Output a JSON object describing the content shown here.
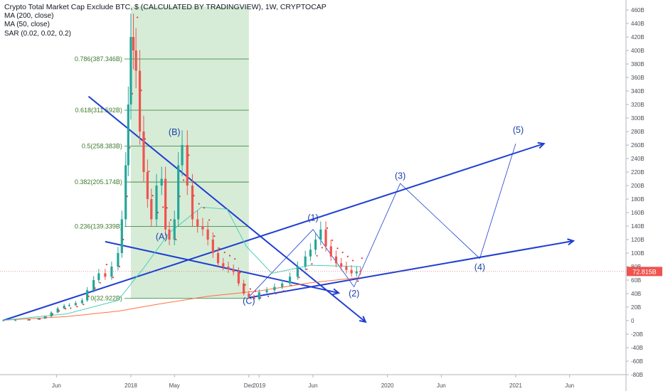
{
  "legend": {
    "title": "Crypto Total Market Cap Exclude BTC, $ (CALCULATED BY TRADINGVIEW), 1W, CRYPTOCAP",
    "indicators": [
      "MA (200, close)",
      "MA (50, close)",
      "SAR (0.02, 0.02, 0.2)"
    ]
  },
  "price_label": "72.815B",
  "colors": {
    "up": "#26a69a",
    "down": "#ef5350",
    "trendline": "#1f3fd1",
    "fib": "#2e7d32",
    "fib_zone": "#c8e6c9",
    "ma50": "#4dd0b5",
    "ma200": "#ff7043",
    "sar": "#e53935"
  },
  "chart_data": {
    "type": "line",
    "title": "Crypto Total Market Cap Exclude BTC, $ (CALCULATED BY TRADINGVIEW), 1W, CRYPTOCAP",
    "xlabel": "",
    "ylabel": "",
    "ylim": [
      -85,
      465
    ],
    "y_ticks": [
      460,
      440,
      420,
      400,
      380,
      360,
      340,
      320,
      300,
      280,
      260,
      240,
      220,
      200,
      180,
      160,
      140,
      120,
      100,
      80,
      60,
      40,
      20,
      0,
      -20,
      -40,
      -60,
      -80
    ],
    "y_tick_labels": [
      "460B",
      "440B",
      "420B",
      "400B",
      "380B",
      "360B",
      "340B",
      "320B",
      "300B",
      "280B",
      "260B",
      "240B",
      "220B",
      "200B",
      "180B",
      "160B",
      "140B",
      "120B",
      "100B",
      "80B",
      "60B",
      "40B",
      "20B",
      "0",
      "-20B",
      "-40B",
      "-60B",
      "-80B"
    ],
    "x_tick_labels": [
      {
        "t": 2017.42,
        "label": "Jun"
      },
      {
        "t": 2018.0,
        "label": "2018"
      },
      {
        "t": 2018.34,
        "label": "May"
      },
      {
        "t": 2018.92,
        "label": "Dec"
      },
      {
        "t": 2019.0,
        "label": "2019"
      },
      {
        "t": 2019.42,
        "label": "Jun"
      },
      {
        "t": 2020.0,
        "label": "2020"
      },
      {
        "t": 2020.42,
        "label": "Jun"
      },
      {
        "t": 2021.0,
        "label": "2021"
      },
      {
        "t": 2021.42,
        "label": "Jun"
      }
    ],
    "xlim": [
      2016.98,
      2021.86
    ],
    "series": [
      {
        "name": "Crypto Total Market Cap Exclude BTC",
        "x": [
          2017.0,
          2017.1,
          2017.2,
          2017.28,
          2017.33,
          2017.38,
          2017.43,
          2017.48,
          2017.52,
          2017.57,
          2017.62,
          2017.66,
          2017.71,
          2017.75,
          2017.8,
          2017.85,
          2017.9,
          2017.93,
          2017.96,
          2017.98,
          2018.0,
          2018.02,
          2018.04,
          2018.07,
          2018.1,
          2018.13,
          2018.16,
          2018.2,
          2018.24,
          2018.27,
          2018.3,
          2018.34,
          2018.37,
          2018.4,
          2018.44,
          2018.48,
          2018.52,
          2018.56,
          2018.6,
          2018.64,
          2018.68,
          2018.72,
          2018.76,
          2018.8,
          2018.84,
          2018.88,
          2018.92,
          2018.96,
          2019.0,
          2019.06,
          2019.12,
          2019.18,
          2019.24,
          2019.3,
          2019.36,
          2019.4,
          2019.44,
          2019.48,
          2019.52,
          2019.56,
          2019.6,
          2019.64,
          2019.68,
          2019.72,
          2019.76,
          2019.79
        ],
        "values": [
          0.5,
          0.8,
          1.5,
          3,
          6,
          12,
          18,
          22,
          23,
          26,
          30,
          45,
          60,
          70,
          65,
          80,
          100,
          150,
          230,
          320,
          420,
          400,
          370,
          280,
          220,
          180,
          150,
          200,
          210,
          135,
          120,
          150,
          230,
          260,
          200,
          150,
          140,
          135,
          120,
          100,
          85,
          80,
          76,
          72,
          55,
          40,
          35,
          32,
          42,
          45,
          50,
          55,
          65,
          80,
          95,
          105,
          120,
          135,
          110,
          95,
          85,
          80,
          75,
          70,
          73,
          72.8
        ]
      }
    ],
    "fibonacci": [
      {
        "level": "0.786",
        "value": 387.346,
        "label": "0.786(387.346B)"
      },
      {
        "level": "0.618",
        "value": 311.592,
        "label": "0.618(311.592B)"
      },
      {
        "level": "0.5",
        "value": 258.383,
        "label": "0.5(258.383B)"
      },
      {
        "level": "0.382",
        "value": 205.174,
        "label": "0.382(205.174B)"
      },
      {
        "level": "0.236",
        "value": 139.339,
        "label": "0.236(139.339B)"
      },
      {
        "level": "0",
        "value": 32.9,
        "label": "0(32.922B)"
      }
    ],
    "fib_zone": {
      "x": [
        2018.0,
        2018.92
      ],
      "y": [
        32.922,
        465
      ]
    },
    "waves": [
      {
        "label": "(A)",
        "x": 2018.24,
        "y": 120
      },
      {
        "label": "(B)",
        "x": 2018.34,
        "y": 275
      },
      {
        "label": "(C)",
        "x": 2018.92,
        "y": 25
      },
      {
        "label": "(1)",
        "x": 2019.42,
        "y": 148
      },
      {
        "label": "(2)",
        "x": 2019.74,
        "y": 36
      },
      {
        "label": "(3)",
        "x": 2020.1,
        "y": 210
      },
      {
        "label": "(4)",
        "x": 2020.72,
        "y": 75
      },
      {
        "label": "(5)",
        "x": 2021.02,
        "y": 278
      }
    ],
    "projection_path": {
      "x": [
        2018.92,
        2019.42,
        2019.74,
        2020.1,
        2020.72,
        2021.0
      ],
      "y": [
        35,
        135,
        50,
        203,
        92,
        262
      ]
    },
    "trendlines": [
      {
        "x": [
          2017.67,
          2019.83
        ],
        "y": [
          332,
          -2
        ]
      },
      {
        "x": [
          2017.8,
          2019.62
        ],
        "y": [
          117,
          41
        ]
      },
      {
        "x": [
          2017.0,
          2021.22
        ],
        "y": [
          0,
          262
        ]
      },
      {
        "x": [
          2018.92,
          2021.45
        ],
        "y": [
          34,
          118
        ]
      }
    ],
    "legend": [
      "MA (200, close)",
      "MA (50, close)",
      "SAR (0.02, 0.02, 0.2)"
    ],
    "grid": false,
    "legend_position": "top-left"
  }
}
